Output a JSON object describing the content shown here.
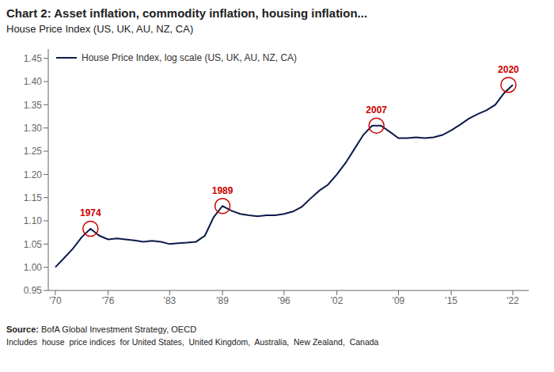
{
  "chart_data": {
    "type": "line",
    "title": "Chart 2: Asset inflation, commodity inflation, housing inflation...",
    "subtitle": "House Price Index (US, UK, AU, NZ, CA)",
    "source_label": "Source:",
    "source": "BofA Global Investment Strategy, OECD",
    "footnote": "Includes  house  price indices  for United States,  United Kingdom,  Australia,  New Zealand,  Canada",
    "x": [
      1970,
      1971,
      1972,
      1973,
      1974,
      1975,
      1976,
      1977,
      1978,
      1979,
      1980,
      1981,
      1982,
      1983,
      1984,
      1985,
      1986,
      1987,
      1988,
      1989,
      1990,
      1991,
      1992,
      1993,
      1994,
      1995,
      1996,
      1997,
      1998,
      1999,
      2000,
      2001,
      2002,
      2003,
      2004,
      2005,
      2006,
      2007,
      2008,
      2009,
      2010,
      2011,
      2012,
      2013,
      2014,
      2015,
      2016,
      2017,
      2018,
      2019,
      2020,
      2021,
      2022
    ],
    "series": [
      {
        "name": "House Price Index, log scale (US, UK, AU, NZ, CA)",
        "color": "#0d1a4a",
        "values": [
          1.0,
          1.02,
          1.04,
          1.065,
          1.083,
          1.068,
          1.06,
          1.062,
          1.06,
          1.058,
          1.055,
          1.057,
          1.055,
          1.05,
          1.052,
          1.053,
          1.055,
          1.068,
          1.108,
          1.132,
          1.122,
          1.115,
          1.112,
          1.11,
          1.112,
          1.112,
          1.115,
          1.12,
          1.13,
          1.148,
          1.165,
          1.178,
          1.2,
          1.225,
          1.255,
          1.285,
          1.305,
          1.305,
          1.292,
          1.278,
          1.278,
          1.28,
          1.278,
          1.28,
          1.285,
          1.295,
          1.307,
          1.32,
          1.33,
          1.338,
          1.35,
          1.375,
          1.393
        ]
      }
    ],
    "xlim": [
      1969.2,
      2023.8
    ],
    "xticks": [
      {
        "value": 1970,
        "label": "'70"
      },
      {
        "value": 1976,
        "label": "'76"
      },
      {
        "value": 1983,
        "label": "'83"
      },
      {
        "value": 1989,
        "label": "'89"
      },
      {
        "value": 1996,
        "label": "'96"
      },
      {
        "value": 2002,
        "label": "'02"
      },
      {
        "value": 2009,
        "label": "'09"
      },
      {
        "value": 2015,
        "label": "'15"
      },
      {
        "value": 2022,
        "label": "'22"
      }
    ],
    "ylim": [
      0.95,
      1.47
    ],
    "yticks": [
      0.95,
      {
        "value": 1.0,
        "label": "1.00"
      },
      1.05,
      {
        "value": 1.1,
        "label": "1.10"
      },
      1.15,
      {
        "value": 1.2,
        "label": "1.20"
      },
      1.25,
      {
        "value": 1.3,
        "label": "1.30"
      },
      1.35,
      {
        "value": 1.4,
        "label": "1.40"
      },
      1.45
    ],
    "annotations": [
      {
        "text": "1974",
        "x": 1974.0,
        "y": 1.083,
        "color": "#cc0000"
      },
      {
        "text": "1989",
        "x": 1989.0,
        "y": 1.132,
        "color": "#cc0000"
      },
      {
        "text": "2007",
        "x": 2006.5,
        "y": 1.305,
        "color": "#cc0000"
      },
      {
        "text": "2020",
        "x": 2021.5,
        "y": 1.393,
        "color": "#cc0000"
      }
    ],
    "legend": "upper left",
    "grid": false
  }
}
